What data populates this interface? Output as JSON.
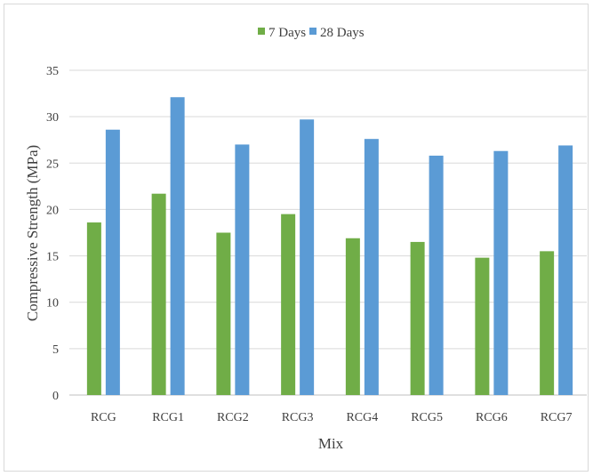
{
  "chart_data": {
    "type": "bar",
    "categories": [
      "RCG",
      "RCG1",
      "RCG2",
      "RCG3",
      "RCG4",
      "RCG5",
      "RCG6",
      "RCG7"
    ],
    "series": [
      {
        "name": "7 Days",
        "color": "#70ad47",
        "values": [
          18.6,
          21.7,
          17.5,
          19.5,
          16.9,
          16.5,
          14.8,
          15.5
        ]
      },
      {
        "name": "28 Days",
        "color": "#5b9bd5",
        "values": [
          28.6,
          32.1,
          27.0,
          29.7,
          27.6,
          25.8,
          26.3,
          26.9
        ]
      }
    ],
    "xlabel": "Mix",
    "ylabel": "Compressive Strength (MPa)",
    "ylim": [
      0,
      35
    ],
    "yticks": [
      "0",
      "5",
      "10",
      "15",
      "20",
      "25",
      "30",
      "35"
    ],
    "grid": true,
    "legend_position": "top-center"
  }
}
